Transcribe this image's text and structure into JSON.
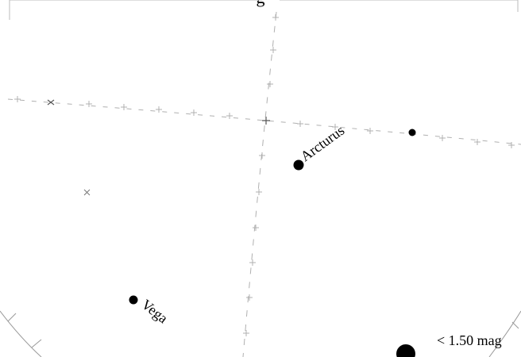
{
  "chart": {
    "top_label": "g"
  },
  "stars": [
    {
      "name": "Arcturus",
      "label": "Arcturus",
      "magnitude_class": "bright"
    },
    {
      "name": "Vega",
      "label": "Vega",
      "magnitude_class": "bright"
    },
    {
      "name": "unnamed-star",
      "label": "",
      "magnitude_class": "medium"
    }
  ],
  "legend": {
    "label": "< 1.50 mag"
  },
  "colors": {
    "star": "#000000",
    "grid": "#aaaaaa",
    "horizon": "#888888",
    "background": "#ffffff"
  }
}
